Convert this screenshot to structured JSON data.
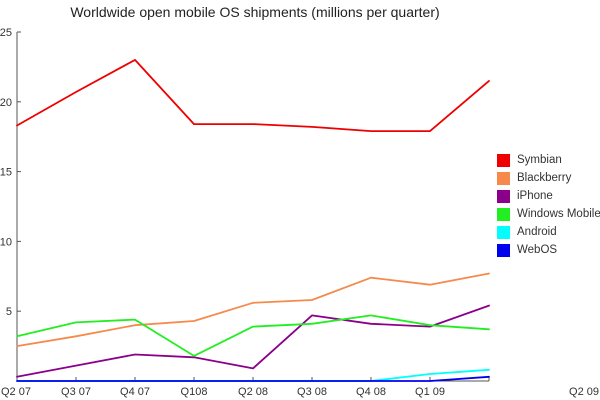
{
  "chart_data": {
    "type": "line",
    "title": "Worldwide open mobile OS shipments (millions per quarter)",
    "xlabel": "",
    "ylabel": "",
    "grid": false,
    "legend_position": "right",
    "categories": [
      "Q2 07",
      "Q3 07",
      "Q4 07",
      "Q108",
      "Q2 08",
      "Q3 08",
      "Q4 08",
      "Q1 09",
      "Q2 09"
    ],
    "ylim": [
      0,
      25
    ],
    "yticks": [
      5,
      10,
      15,
      20,
      25
    ],
    "series": [
      {
        "name": "Symbian",
        "color": "#ee0000",
        "values": [
          18.3,
          20.7,
          23.0,
          18.4,
          18.4,
          18.2,
          17.9,
          17.9,
          21.5
        ]
      },
      {
        "name": "Blackberry",
        "color": "#f58a4b",
        "values": [
          2.5,
          3.2,
          4.0,
          4.3,
          5.6,
          5.8,
          7.4,
          6.9,
          7.7
        ]
      },
      {
        "name": "iPhone",
        "color": "#8b008b",
        "values": [
          0.3,
          1.1,
          1.9,
          1.7,
          0.9,
          4.7,
          4.1,
          3.9,
          5.4
        ]
      },
      {
        "name": "Windows Mobile",
        "color": "#22ee22",
        "values": [
          3.2,
          4.2,
          4.4,
          1.8,
          3.9,
          4.1,
          4.7,
          4.0,
          3.7
        ]
      },
      {
        "name": "Android",
        "color": "#00ffff",
        "values": [
          0,
          0,
          0,
          0,
          0,
          0,
          0,
          0.5,
          0.8
        ]
      },
      {
        "name": "WebOS",
        "color": "#0000ee",
        "values": [
          0,
          0,
          0,
          0,
          0,
          0,
          0,
          0,
          0.3
        ]
      }
    ]
  }
}
